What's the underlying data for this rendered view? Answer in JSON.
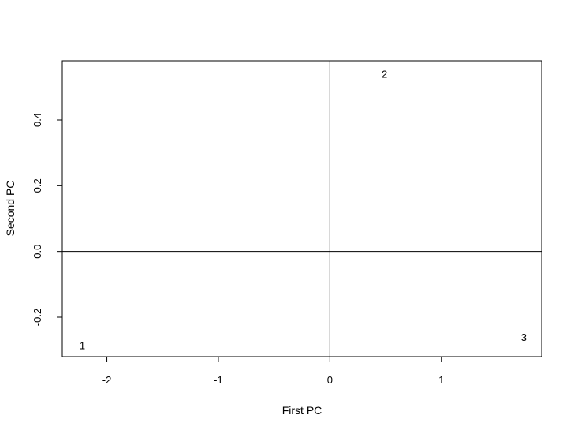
{
  "chart_data": {
    "type": "scatter",
    "title": "",
    "xlabel": "First PC",
    "ylabel": "Second PC",
    "xlim": [
      -2.4,
      1.9
    ],
    "ylim": [
      -0.32,
      0.58
    ],
    "x_ticks": [
      -2,
      -1,
      0,
      1
    ],
    "x_tick_labels": [
      "-2",
      "-1",
      "0",
      "1"
    ],
    "y_ticks": [
      -0.2,
      0.0,
      0.2,
      0.4
    ],
    "y_tick_labels": [
      "-0.2",
      "0.0",
      "0.2",
      "0.4"
    ],
    "reference_lines": {
      "vertical_x": 0,
      "horizontal_y": 0
    },
    "grid": false,
    "points": [
      {
        "label": "1",
        "x": -2.22,
        "y": -0.285
      },
      {
        "label": "2",
        "x": 0.49,
        "y": 0.54
      },
      {
        "label": "3",
        "x": 1.74,
        "y": -0.26
      }
    ],
    "colors": {
      "axis": "#000000",
      "background": "#ffffff"
    }
  }
}
